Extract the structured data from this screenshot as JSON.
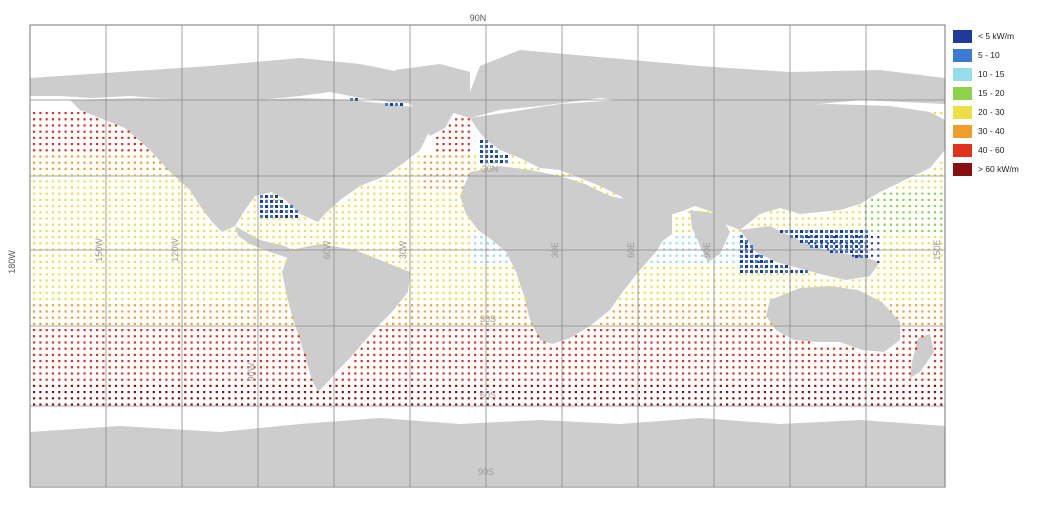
{
  "legend": {
    "colors": {
      "lt5": "#1f3b98",
      "c5_10": "#3d7ad2",
      "c10_15": "#97dcea",
      "c15_20": "#8cd24a",
      "c20_30": "#ece046",
      "c30_40": "#f0a02a",
      "c40_60": "#e0301e",
      "gt60": "#8a0f10"
    },
    "items": [
      {
        "label": "< 5 kW/m",
        "color": "#1f3b98"
      },
      {
        "label": "5 - 10",
        "color": "#3d7ad2"
      },
      {
        "label": "10 - 15",
        "color": "#97dcea"
      },
      {
        "label": "15 - 20",
        "color": "#8cd24a"
      },
      {
        "label": "20 - 30",
        "color": "#ece046"
      },
      {
        "label": "30 - 40",
        "color": "#f0a02a"
      },
      {
        "label": "40 - 60",
        "color": "#e0301e"
      },
      {
        "label": "> 60 kW/m",
        "color": "#8a0f10"
      }
    ]
  },
  "axis": {
    "top_label": "90N",
    "bottom_label": "90S",
    "left_label": "180W",
    "lat_labels": [
      "30N",
      "30S",
      "60S"
    ],
    "lon_labels": [
      "150W",
      "120W",
      "90W",
      "60W",
      "30W",
      "30E",
      "60E",
      "90E",
      "150E"
    ]
  },
  "colors": {
    "land": "#cdcdcd",
    "ocean": "#ffffff",
    "grid": "#888888"
  }
}
